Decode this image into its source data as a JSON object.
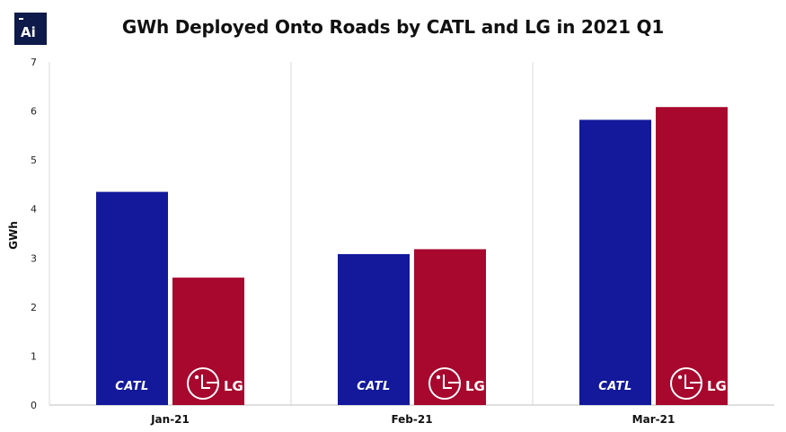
{
  "header": {
    "logo_text": "Ai",
    "title": "GWh Deployed Onto Roads by CATL and LG in 2021 Q1"
  },
  "colors": {
    "catl": "#13199a",
    "lg": "#a8082e",
    "logo_bg": "#0d1a4a",
    "grid": "#d9d9d9",
    "axis": "#bfbfbf"
  },
  "chart_data": {
    "type": "bar",
    "title": "GWh Deployed Onto Roads by CATL and LG in 2021 Q1",
    "xlabel": "",
    "ylabel": "GWh",
    "ylim": [
      0,
      7
    ],
    "yticks": [
      0,
      1,
      2,
      3,
      4,
      5,
      6,
      7
    ],
    "categories": [
      "Jan-21",
      "Feb-21",
      "Mar-21"
    ],
    "series": [
      {
        "name": "CATL",
        "values": [
          4.35,
          3.08,
          5.82
        ]
      },
      {
        "name": "LG",
        "values": [
          2.6,
          3.18,
          6.08
        ]
      }
    ],
    "grid": true,
    "legend": "logos inside bars"
  }
}
